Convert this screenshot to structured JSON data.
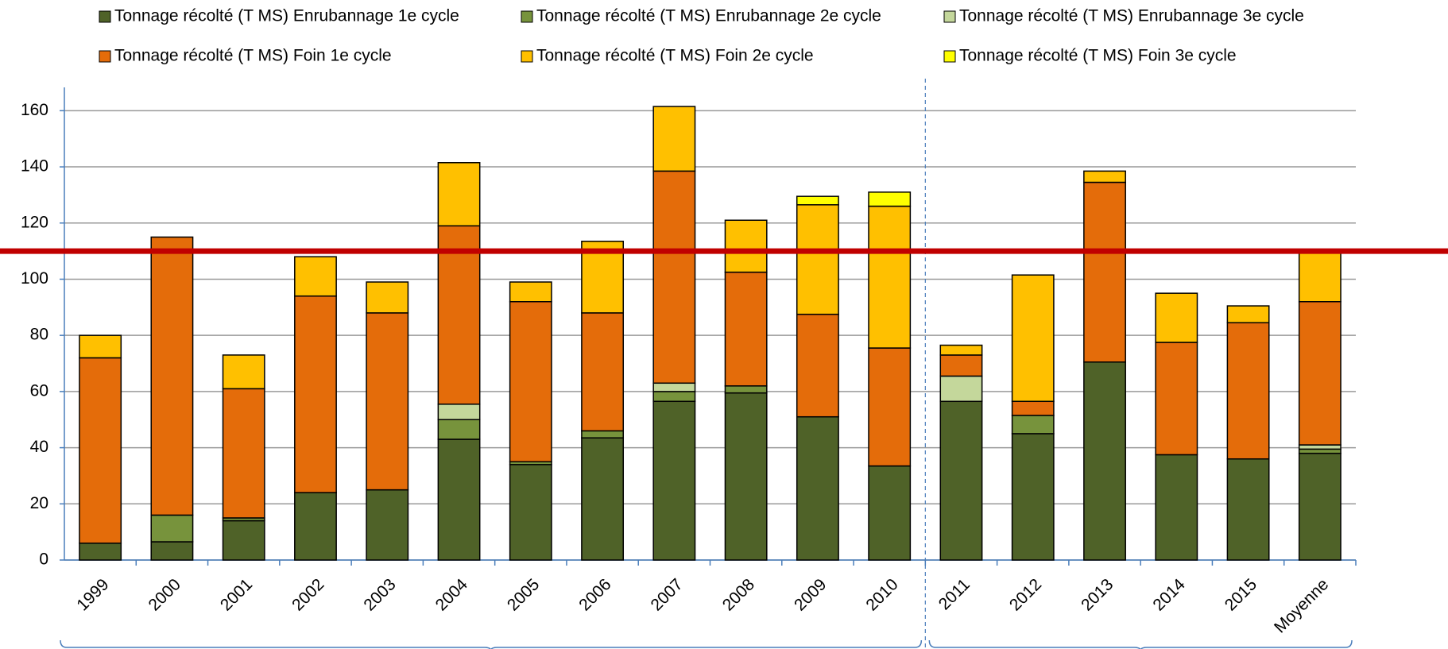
{
  "chart_data": {
    "type": "stacked_bar",
    "categories": [
      "1999",
      "2000",
      "2001",
      "2002",
      "2003",
      "2004",
      "2005",
      "2006",
      "2007",
      "2008",
      "2009",
      "2010",
      "2011",
      "2012",
      "2013",
      "2014",
      "2015",
      "Moyenne"
    ],
    "series": [
      {
        "name": "Tonnage récolté (T MS) Enrubannage 1e cycle",
        "color": "#4f6228",
        "values": [
          6,
          6.5,
          14,
          24,
          25,
          43,
          34,
          43.5,
          56.5,
          59.5,
          51,
          33.5,
          56.5,
          45,
          70.5,
          37.5,
          36,
          38
        ]
      },
      {
        "name": "Tonnage récolté (T MS) Enrubannage 2e cycle",
        "color": "#77933c",
        "values": [
          0,
          9.5,
          1,
          0,
          0,
          7,
          1,
          2.5,
          3.5,
          2.5,
          0,
          0,
          0,
          6.5,
          0,
          0,
          0,
          1.5
        ]
      },
      {
        "name": "Tonnage récolté (T MS) Enrubannage 3e cycle",
        "color": "#c4d79b",
        "values": [
          0,
          0,
          0,
          0,
          0,
          5.5,
          0,
          0,
          3,
          0,
          0,
          0,
          9,
          0,
          0,
          0,
          0,
          1.5
        ]
      },
      {
        "name": "Tonnage récolté (T MS) Foin 1e cycle",
        "color": "#e46c0a",
        "values": [
          66,
          99,
          46,
          70,
          63,
          63.5,
          57,
          42,
          75.5,
          40.5,
          36.5,
          42,
          7.5,
          5,
          64,
          40,
          48.5,
          51
        ]
      },
      {
        "name": "Tonnage récolté (T MS) Foin 2e cycle",
        "color": "#ffc000",
        "values": [
          8,
          0,
          12,
          14,
          11,
          22.5,
          7,
          25.5,
          23,
          18.5,
          39,
          50.5,
          3.5,
          45,
          4,
          17.5,
          6,
          18
        ]
      },
      {
        "name": "Tonnage récolté (T MS) Foin 3e cycle",
        "color": "#ffff00",
        "values": [
          0,
          0,
          0,
          0,
          0,
          0,
          0,
          0,
          0,
          0,
          3,
          5,
          0,
          0,
          0,
          0,
          0,
          0
        ]
      }
    ],
    "ylim": [
      0,
      170
    ],
    "yticks": [
      0,
      20,
      40,
      60,
      80,
      100,
      120,
      140,
      160
    ],
    "grid": true,
    "reference_line": {
      "value": 110,
      "color": "#c00000"
    },
    "legend": "top"
  }
}
